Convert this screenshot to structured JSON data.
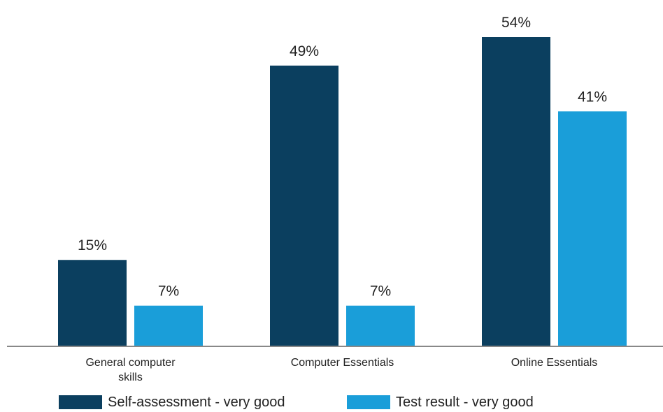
{
  "chart_data": {
    "type": "bar",
    "categories": [
      [
        "General computer",
        "skills"
      ],
      [
        "Computer Essentials"
      ],
      [
        "Online Essentials"
      ]
    ],
    "series": [
      {
        "name": "Self-assessment - very good",
        "values": [
          15,
          49,
          54
        ],
        "labels": [
          "15%",
          "49%",
          "54%"
        ],
        "color": "#0b3f5f"
      },
      {
        "name": "Test result - very good",
        "values": [
          7,
          7,
          41
        ],
        "labels": [
          "7%",
          "7%",
          "41%"
        ],
        "color": "#1a9ed9"
      }
    ],
    "ylim": [
      0,
      57
    ],
    "axis_color": "#888888",
    "legend_position": "bottom"
  }
}
